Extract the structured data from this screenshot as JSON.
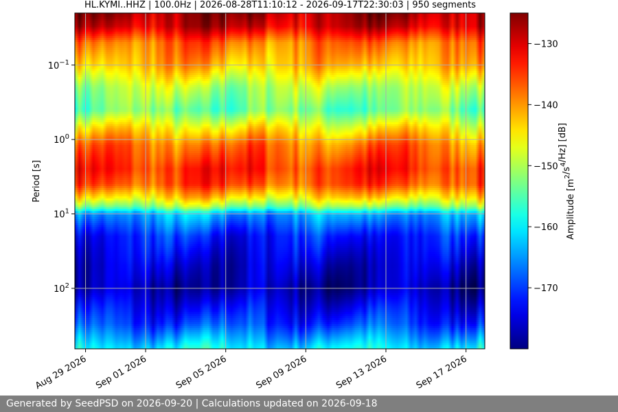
{
  "chart_data": {
    "type": "heatmap",
    "title": "HL.KYMI..HHZ | 100.0Hz | 2026-08-28T11:10:12 - 2026-09-17T22:30:03 | 950 segments",
    "ylabel": "Period [s]",
    "y_scale": "log",
    "y_inverted": true,
    "ylim": [
      0.02,
      650
    ],
    "xlim": [
      "2026-08-28T11:10:12",
      "2026-09-17T22:30:03"
    ],
    "x_ticks": [
      "Aug 29 2026",
      "Sep 01 2026",
      "Sep 05 2026",
      "Sep 09 2026",
      "Sep 13 2026",
      "Sep 17 2026"
    ],
    "x_tick_dates": [
      "2026-08-29",
      "2026-09-01",
      "2026-09-05",
      "2026-09-09",
      "2026-09-13",
      "2026-09-17"
    ],
    "y_ticks": [
      "10^-1",
      "10^0",
      "10^1",
      "10^2"
    ],
    "y_tick_values": [
      0.1,
      1,
      10,
      100
    ],
    "grid": true,
    "colormap": "jet",
    "colorbar": {
      "label": "Amplitude [m^2/s^4/Hz] [dB]",
      "range": [
        -180,
        -125
      ],
      "ticks": [
        -130,
        -140,
        -150,
        -160,
        -170
      ]
    },
    "period_profile": [
      {
        "period": 0.02,
        "amplitude": -127
      },
      {
        "period": 0.03,
        "amplitude": -129
      },
      {
        "period": 0.05,
        "amplitude": -138
      },
      {
        "period": 0.1,
        "amplitude": -142
      },
      {
        "period": 0.2,
        "amplitude": -150
      },
      {
        "period": 0.4,
        "amplitude": -154
      },
      {
        "period": 0.7,
        "amplitude": -145
      },
      {
        "period": 1.2,
        "amplitude": -138
      },
      {
        "period": 2.5,
        "amplitude": -134
      },
      {
        "period": 4,
        "amplitude": -136
      },
      {
        "period": 6,
        "amplitude": -144
      },
      {
        "period": 8,
        "amplitude": -152
      },
      {
        "period": 10,
        "amplitude": -164
      },
      {
        "period": 20,
        "amplitude": -172
      },
      {
        "period": 50,
        "amplitude": -176
      },
      {
        "period": 100,
        "amplitude": -178
      },
      {
        "period": 300,
        "amplitude": -170
      },
      {
        "period": 650,
        "amplitude": -160
      }
    ]
  },
  "footer": {
    "text": "Generated by SeedPSD on 2026-09-20 | Calculations updated on 2026-09-18"
  }
}
